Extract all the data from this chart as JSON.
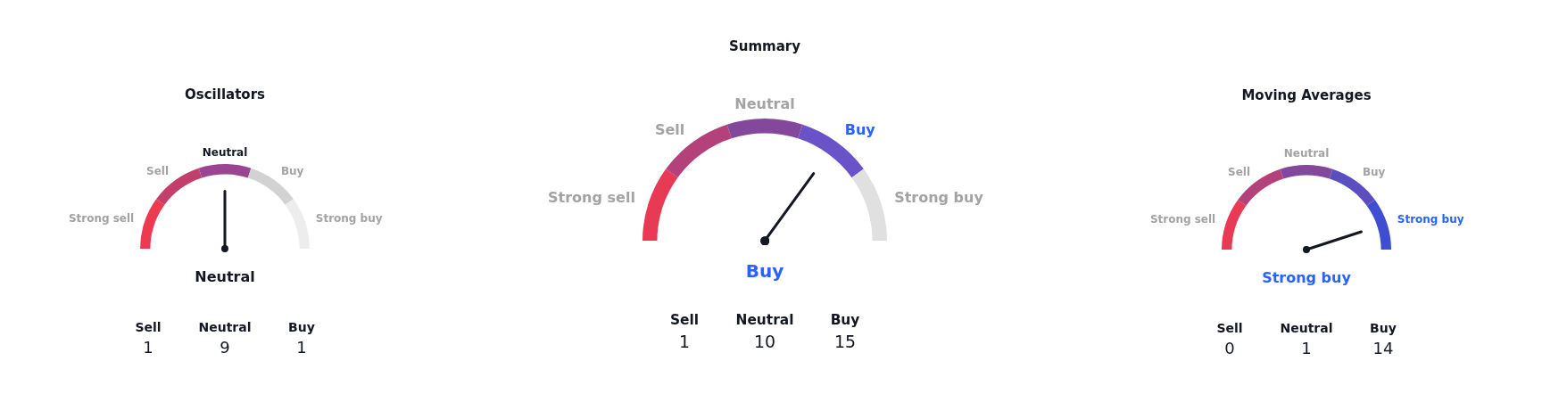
{
  "chart_data": [
    {
      "type": "donut",
      "title": "Oscillators",
      "categories": [
        "Strong sell",
        "Sell",
        "Neutral",
        "Buy",
        "Strong buy"
      ],
      "values": [
        20,
        20,
        20,
        20,
        20
      ],
      "colors": [
        "#ee3a50",
        "#c23f6c",
        "#9a4592",
        "#d2d2d2",
        "#ededed"
      ],
      "needle": "Neutral",
      "annotations": [
        "Neutral"
      ]
    },
    {
      "type": "other",
      "categories": [
        "Sell",
        "Neutral",
        "Buy"
      ],
      "values": [
        1,
        9,
        1
      ],
      "data_labels": true
    },
    {
      "type": "donut",
      "title": "Summary",
      "categories": [
        "Strong sell",
        "Sell",
        "Neutral",
        "Buy",
        "Strong buy"
      ],
      "values": [
        20,
        20,
        20,
        20,
        20
      ],
      "colors": [
        "#e83a55",
        "#b3417a",
        "#83479c",
        "#6a52c8",
        "#e0e0e0"
      ],
      "needle": "Buy",
      "annotations": [
        "Buy"
      ]
    },
    {
      "type": "other",
      "categories": [
        "Sell",
        "Neutral",
        "Buy"
      ],
      "values": [
        1,
        10,
        15
      ],
      "data_labels": true
    },
    {
      "type": "donut",
      "title": "Moving Averages",
      "categories": [
        "Strong sell",
        "Sell",
        "Neutral",
        "Buy",
        "Strong buy"
      ],
      "values": [
        20,
        20,
        20,
        20,
        20
      ],
      "colors": [
        "#e83a55",
        "#b3417a",
        "#83479c",
        "#5b4fbf",
        "#3f4ed0"
      ],
      "needle": "Strong buy",
      "annotations": [
        "Strong buy"
      ]
    },
    {
      "type": "other",
      "categories": [
        "Sell",
        "Neutral",
        "Buy"
      ],
      "values": [
        0,
        1,
        14
      ],
      "data_labels": true
    }
  ]
}
